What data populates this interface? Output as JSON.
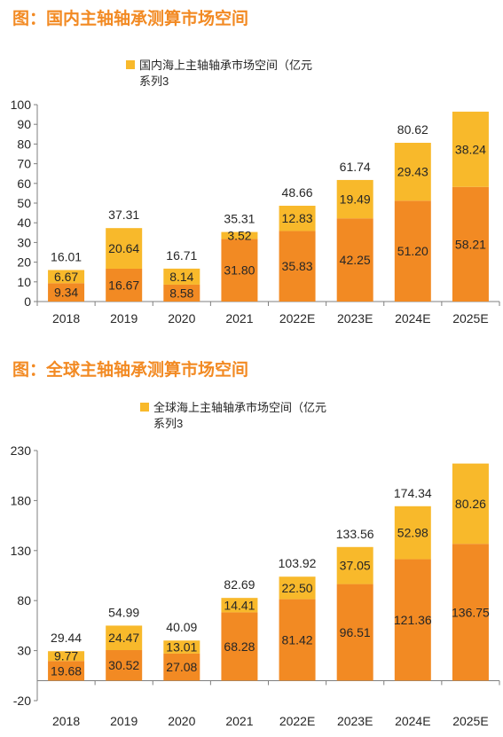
{
  "colors": {
    "accent": "#F28A23",
    "bottom": "#F28A23",
    "top": "#F8B92B",
    "axis": "#7f7f7f",
    "text": "#262626"
  },
  "chart_data": [
    {
      "type": "bar",
      "stacked": true,
      "title": "图：国内主轴轴承测算市场空间",
      "categories": [
        "2018",
        "2019",
        "2020",
        "2021",
        "2022E",
        "2023E",
        "2024E",
        "2025E"
      ],
      "series": [
        {
          "name": "系列3",
          "values": [
            9.34,
            16.67,
            8.58,
            31.8,
            35.83,
            42.25,
            51.2,
            58.21
          ]
        },
        {
          "name": "国内海上主轴轴承市场空间（亿元",
          "values": [
            6.67,
            20.64,
            8.14,
            3.52,
            12.83,
            19.49,
            29.43,
            38.24
          ]
        }
      ],
      "bottom_labels": [
        "9.34",
        "16.67",
        "8.58",
        "31.80",
        "35.83",
        "42.25",
        "51.20",
        "58.21"
      ],
      "top_labels": [
        "6.67",
        "20.64",
        "8.14",
        "3.52",
        "12.83",
        "19.49",
        "29.43",
        "38.24"
      ],
      "total_labels": [
        "16.01",
        "37.31",
        "16.71",
        "35.31",
        "48.66",
        "61.74",
        "80.62",
        ""
      ],
      "yticks": [
        "0",
        "10",
        "20",
        "30",
        "40",
        "50",
        "60",
        "70",
        "80",
        "90",
        "100"
      ],
      "ylim": [
        0,
        100
      ],
      "legend": [
        "国内海上主轴轴承市场空间（亿元",
        "系列3"
      ],
      "legend_position": "top"
    },
    {
      "type": "bar",
      "stacked": true,
      "title": "图：全球主轴轴承测算市场空间",
      "categories": [
        "2018",
        "2019",
        "2020",
        "2021",
        "2022E",
        "2023E",
        "2024E",
        "2025E"
      ],
      "series": [
        {
          "name": "系列3",
          "values": [
            19.68,
            30.52,
            27.08,
            68.28,
            81.42,
            96.51,
            121.36,
            136.75
          ]
        },
        {
          "name": "全球海上主轴轴承市场空间（亿元",
          "values": [
            9.77,
            24.47,
            13.01,
            14.41,
            22.5,
            37.05,
            52.98,
            80.26
          ]
        }
      ],
      "bottom_labels": [
        "19.68",
        "30.52",
        "27.08",
        "68.28",
        "81.42",
        "96.51",
        "121.36",
        "136.75"
      ],
      "top_labels": [
        "9.77",
        "24.47",
        "13.01",
        "14.41",
        "22.50",
        "37.05",
        "52.98",
        "80.26"
      ],
      "total_labels": [
        "29.44",
        "54.99",
        "40.09",
        "82.69",
        "103.92",
        "133.56",
        "174.34",
        ""
      ],
      "yticks": [
        "-20",
        "30",
        "80",
        "130",
        "180",
        "230"
      ],
      "ylim": [
        -20,
        230
      ],
      "legend": [
        "全球海上主轴轴承市场空间（亿元",
        "系列3"
      ],
      "legend_position": "top"
    }
  ]
}
